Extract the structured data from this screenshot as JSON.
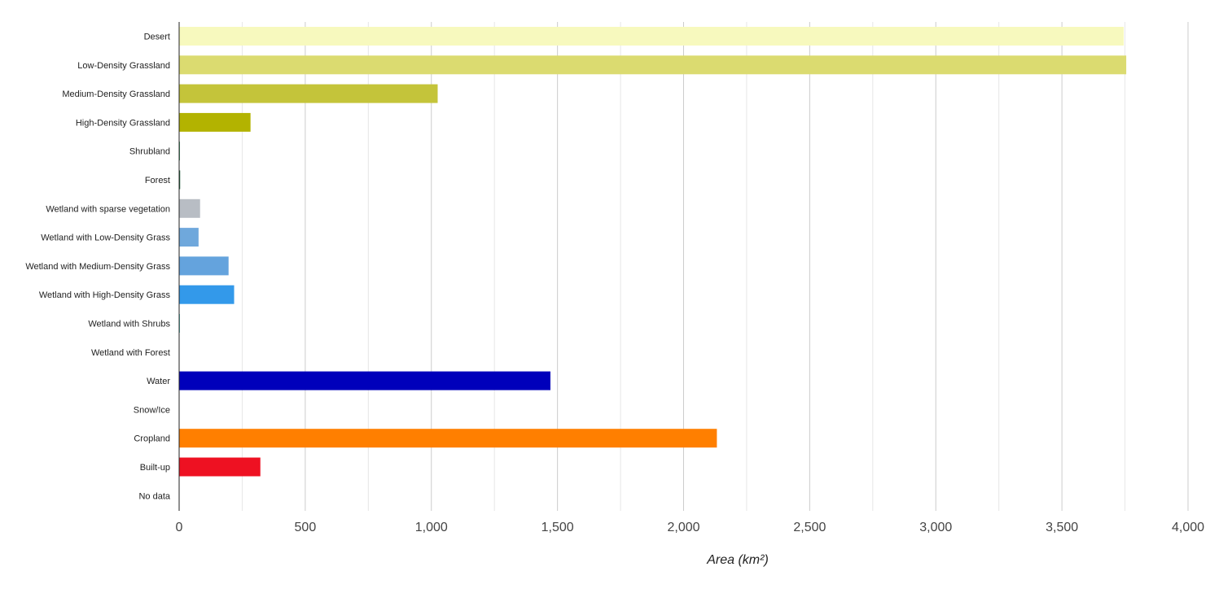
{
  "chart_data": {
    "type": "bar",
    "orientation": "horizontal",
    "title": "",
    "xlabel": "Area (km²)",
    "ylabel": "",
    "xlim": [
      0,
      4000
    ],
    "xticks": [
      0,
      500,
      1000,
      1500,
      2000,
      2500,
      3000,
      3500,
      4000
    ],
    "xtick_labels": [
      "0",
      "500",
      "1,000",
      "1,500",
      "2,000",
      "2,500",
      "3,000",
      "3,500",
      "4,000"
    ],
    "grid": true,
    "legend": "none",
    "categories": [
      "Desert",
      "Low-Density Grassland",
      "Medium-Density Grassland",
      "High-Density Grassland",
      "Shrubland",
      "Forest",
      "Wetland with sparse vegetation",
      "Wetland with Low-Density Grass",
      "Wetland with Medium-Density Grass",
      "Wetland with High-Density Grass",
      "Wetland with Shrubs",
      "Wetland with Forest",
      "Water",
      "Snow/Ice",
      "Cropland",
      "Built-up",
      "No data"
    ],
    "values": [
      3745,
      3755,
      1025,
      283,
      3,
      4,
      83,
      77,
      196,
      218,
      3,
      0,
      1472,
      0,
      2132,
      322,
      0
    ],
    "colors": [
      "#f7f9be",
      "#dbdb70",
      "#c4c43a",
      "#b3b300",
      "#2e8b57",
      "#1f5f3a",
      "#b8bdc4",
      "#6fa8dc",
      "#64a3dd",
      "#3399ea",
      "#4db8b0",
      "#2266aa",
      "#0000bb",
      "#c8e6f5",
      "#ff7f00",
      "#ee1122",
      "#777777"
    ]
  }
}
